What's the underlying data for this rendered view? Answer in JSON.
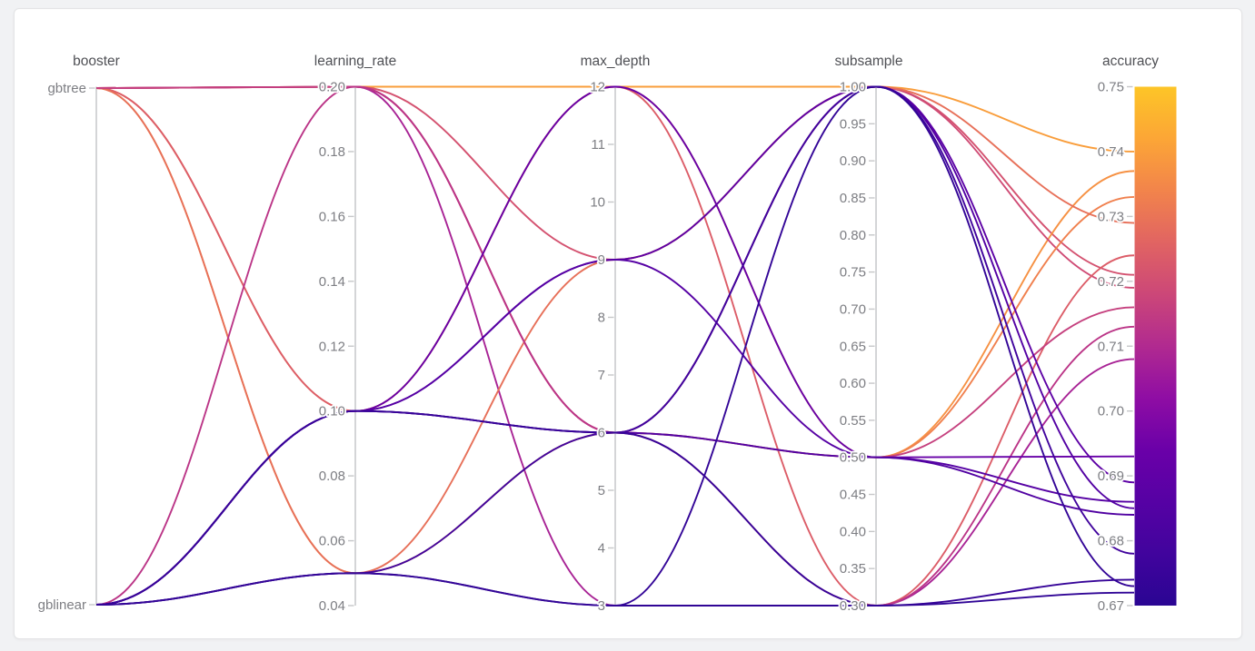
{
  "page": {
    "background_color": "#f1f2f4",
    "card_background_color": "#ffffff"
  },
  "chart_data": {
    "type": "parallel-coordinates",
    "description": "Hyperparameter search trials colored by accuracy (plasma colormap)",
    "color_by": "accuracy",
    "legend_position": "right-colorbar",
    "grid": false,
    "colorbar": {
      "label": "accuracy",
      "min": 0.67,
      "max": 0.75,
      "colormap": "plasma",
      "stops": [
        "#2a0593",
        "#41049d",
        "#5601a4",
        "#6a00a8",
        "#8f0da4",
        "#b12a90",
        "#cc4778",
        "#e16462",
        "#f2844b",
        "#fca636",
        "#fdc527"
      ]
    },
    "axes": [
      {
        "id": "booster",
        "title": "booster",
        "type": "categorical",
        "categories": [
          "gbtree",
          "gblinear"
        ]
      },
      {
        "id": "learning_rate",
        "title": "learning_rate",
        "type": "numeric",
        "domain": [
          0.04,
          0.2
        ],
        "ticks": [
          {
            "label": "0.20",
            "value": 0.2
          },
          {
            "label": "0.18",
            "value": 0.18
          },
          {
            "label": "0.16",
            "value": 0.16
          },
          {
            "label": "0.14",
            "value": 0.14
          },
          {
            "label": "0.12",
            "value": 0.12
          },
          {
            "label": "0.10",
            "value": 0.1
          },
          {
            "label": "0.08",
            "value": 0.08
          },
          {
            "label": "0.06",
            "value": 0.06
          },
          {
            "label": "0.04",
            "value": 0.04
          }
        ]
      },
      {
        "id": "max_depth",
        "title": "max_depth",
        "type": "numeric",
        "domain": [
          3,
          12
        ],
        "ticks": [
          {
            "label": "12",
            "value": 12
          },
          {
            "label": "11",
            "value": 11
          },
          {
            "label": "10",
            "value": 10
          },
          {
            "label": "9",
            "value": 9
          },
          {
            "label": "8",
            "value": 8
          },
          {
            "label": "7",
            "value": 7
          },
          {
            "label": "6",
            "value": 6
          },
          {
            "label": "5",
            "value": 5
          },
          {
            "label": "4",
            "value": 4
          },
          {
            "label": "3",
            "value": 3
          }
        ]
      },
      {
        "id": "subsample",
        "title": "subsample",
        "type": "numeric",
        "domain": [
          0.3,
          1.0
        ],
        "ticks": [
          {
            "label": "1.00",
            "value": 1.0
          },
          {
            "label": "0.95",
            "value": 0.95
          },
          {
            "label": "0.90",
            "value": 0.9
          },
          {
            "label": "0.85",
            "value": 0.85
          },
          {
            "label": "0.80",
            "value": 0.8
          },
          {
            "label": "0.75",
            "value": 0.75
          },
          {
            "label": "0.70",
            "value": 0.7
          },
          {
            "label": "0.65",
            "value": 0.65
          },
          {
            "label": "0.60",
            "value": 0.6
          },
          {
            "label": "0.55",
            "value": 0.55
          },
          {
            "label": "0.50",
            "value": 0.5
          },
          {
            "label": "0.45",
            "value": 0.45
          },
          {
            "label": "0.40",
            "value": 0.4
          },
          {
            "label": "0.35",
            "value": 0.35
          },
          {
            "label": "0.30",
            "value": 0.3
          }
        ]
      },
      {
        "id": "accuracy",
        "title": "accuracy",
        "type": "numeric",
        "domain": [
          0.67,
          0.75
        ],
        "has_colorbar": true,
        "ticks": [
          {
            "label": "0.75",
            "value": 0.75
          },
          {
            "label": "0.74",
            "value": 0.74
          },
          {
            "label": "0.73",
            "value": 0.73
          },
          {
            "label": "0.72",
            "value": 0.72
          },
          {
            "label": "0.71",
            "value": 0.71
          },
          {
            "label": "0.70",
            "value": 0.7
          },
          {
            "label": "0.69",
            "value": 0.69
          },
          {
            "label": "0.68",
            "value": 0.68
          },
          {
            "label": "0.67",
            "value": 0.67
          }
        ]
      }
    ],
    "trials": [
      {
        "booster": "gbtree",
        "learning_rate": 0.2,
        "max_depth": 12,
        "subsample": 1.0,
        "accuracy": 0.74
      },
      {
        "booster": "gbtree",
        "learning_rate": 0.2,
        "max_depth": 9,
        "subsample": 1.0,
        "accuracy": 0.721
      },
      {
        "booster": "gbtree",
        "learning_rate": 0.05,
        "max_depth": 6,
        "subsample": 0.5,
        "accuracy": 0.737
      },
      {
        "booster": "gbtree",
        "learning_rate": 0.2,
        "max_depth": 6,
        "subsample": 1.0,
        "accuracy": 0.719
      },
      {
        "booster": "gbtree",
        "learning_rate": 0.2,
        "max_depth": 3,
        "subsample": 0.3,
        "accuracy": 0.708
      },
      {
        "booster": "gbtree",
        "learning_rate": 0.1,
        "max_depth": 12,
        "subsample": 0.5,
        "accuracy": 0.733
      },
      {
        "booster": "gbtree",
        "learning_rate": 0.1,
        "max_depth": 12,
        "subsample": 0.3,
        "accuracy": 0.724
      },
      {
        "booster": "gbtree",
        "learning_rate": 0.05,
        "max_depth": 9,
        "subsample": 1.0,
        "accuracy": 0.729
      },
      {
        "booster": "gbtree",
        "learning_rate": 0.2,
        "max_depth": 6,
        "subsample": 0.5,
        "accuracy": 0.716
      },
      {
        "booster": "gblinear",
        "learning_rate": 0.2,
        "max_depth": 6,
        "subsample": 0.3,
        "accuracy": 0.713
      },
      {
        "booster": "gblinear",
        "learning_rate": 0.1,
        "max_depth": 12,
        "subsample": 0.5,
        "accuracy": 0.693
      },
      {
        "booster": "gblinear",
        "learning_rate": 0.1,
        "max_depth": 9,
        "subsample": 1.0,
        "accuracy": 0.689
      },
      {
        "booster": "gblinear",
        "learning_rate": 0.1,
        "max_depth": 9,
        "subsample": 0.5,
        "accuracy": 0.686
      },
      {
        "booster": "gblinear",
        "learning_rate": 0.1,
        "max_depth": 6,
        "subsample": 1.0,
        "accuracy": 0.685
      },
      {
        "booster": "gblinear",
        "learning_rate": 0.1,
        "max_depth": 6,
        "subsample": 0.5,
        "accuracy": 0.684
      },
      {
        "booster": "gblinear",
        "learning_rate": 0.05,
        "max_depth": 6,
        "subsample": 1.0,
        "accuracy": 0.678
      },
      {
        "booster": "gblinear",
        "learning_rate": 0.1,
        "max_depth": 6,
        "subsample": 0.3,
        "accuracy": 0.674
      },
      {
        "booster": "gblinear",
        "learning_rate": 0.05,
        "max_depth": 3,
        "subsample": 0.3,
        "accuracy": 0.672
      },
      {
        "booster": "gblinear",
        "learning_rate": 0.05,
        "max_depth": 3,
        "subsample": 1.0,
        "accuracy": 0.673
      }
    ]
  }
}
